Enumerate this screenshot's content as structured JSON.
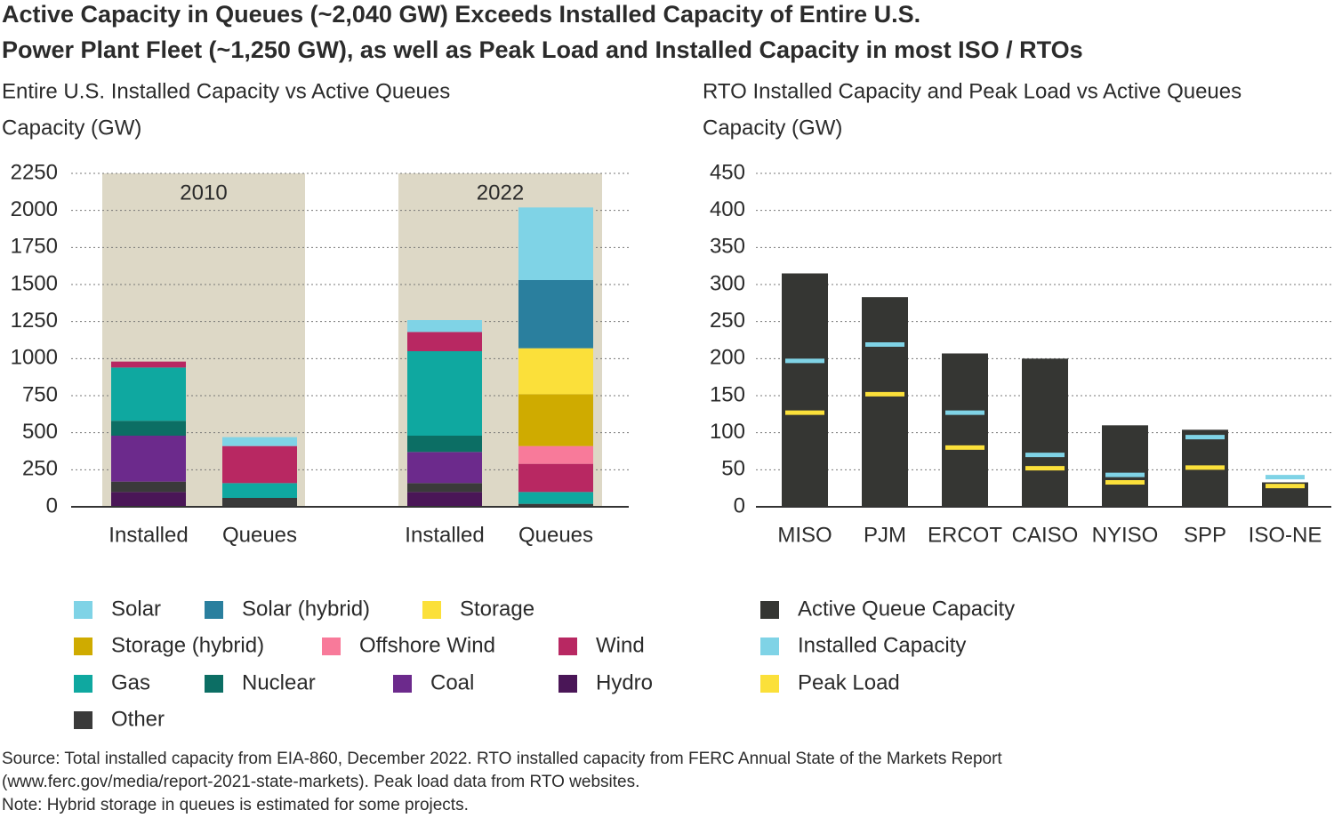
{
  "title": [
    "Active Capacity in Queues (~2,040 GW) Exceeds Installed Capacity of Entire U.S.",
    "Power Plant Fleet (~1,250 GW), as well as Peak Load and Installed Capacity in most ISO / RTOs"
  ],
  "notes": [
    "Source: Total installed capacity from EIA-860, December 2022. RTO installed capacity from FERC Annual State of the Markets Report",
    "(www.ferc.gov/media/report-2021-state-markets). Peak load data from RTO websites.",
    "Note: Hybrid storage in queues is estimated for some projects."
  ],
  "chart_data": [
    {
      "type": "stacked_bar",
      "title": "Entire U.S. Installed Capacity vs Active Queues",
      "ylabel": "Capacity (GW)",
      "groups": [
        "2010",
        "2022"
      ],
      "categories": [
        "Installed",
        "Queues",
        "Installed",
        "Queues"
      ],
      "ylim": [
        0,
        2250
      ],
      "yticks": [
        0,
        250,
        500,
        750,
        1000,
        1250,
        1500,
        1750,
        2000,
        2250
      ],
      "grid": true,
      "series": [
        {
          "name": "Hydro",
          "color": "#4a1657",
          "values": [
            100,
            0,
            100,
            0
          ]
        },
        {
          "name": "Other",
          "color": "#3a3a3a",
          "values": [
            70,
            60,
            60,
            20
          ]
        },
        {
          "name": "Coal",
          "color": "#6c2a8c",
          "values": [
            310,
            0,
            210,
            0
          ]
        },
        {
          "name": "Nuclear",
          "color": "#0c6e64",
          "values": [
            100,
            0,
            110,
            0
          ]
        },
        {
          "name": "Gas",
          "color": "#0fa8a0",
          "values": [
            360,
            100,
            570,
            80
          ]
        },
        {
          "name": "Wind",
          "color": "#b82862",
          "values": [
            40,
            250,
            130,
            190
          ]
        },
        {
          "name": "Offshore Wind",
          "color": "#f87a9a",
          "values": [
            0,
            0,
            0,
            120
          ]
        },
        {
          "name": "Storage (hybrid)",
          "color": "#cfab00",
          "values": [
            0,
            0,
            0,
            350
          ]
        },
        {
          "name": "Storage",
          "color": "#fbe03a",
          "values": [
            0,
            0,
            0,
            310
          ]
        },
        {
          "name": "Solar (hybrid)",
          "color": "#2a7f9e",
          "values": [
            0,
            0,
            0,
            460
          ]
        },
        {
          "name": "Solar",
          "color": "#7fd3e6",
          "values": [
            0,
            60,
            80,
            490
          ]
        }
      ]
    },
    {
      "type": "bar_with_markers",
      "title": "RTO Installed Capacity and Peak Load vs Active Queues",
      "ylabel": "Capacity (GW)",
      "categories": [
        "MISO",
        "PJM",
        "ERCOT",
        "CAISO",
        "NYISO",
        "SPP",
        "ISO-NE"
      ],
      "ylim": [
        0,
        450
      ],
      "yticks": [
        0,
        50,
        100,
        150,
        200,
        250,
        300,
        350,
        400,
        450
      ],
      "grid": true,
      "series": [
        {
          "name": "Active Queue Capacity",
          "color": "#353633",
          "style": "bar",
          "values": [
            315,
            283,
            207,
            200,
            110,
            104,
            33
          ]
        },
        {
          "name": "Installed Capacity",
          "color": "#7fd3e6",
          "style": "marker",
          "values": [
            197,
            219,
            127,
            70,
            43,
            94,
            40
          ]
        },
        {
          "name": "Peak Load",
          "color": "#fbe03a",
          "style": "marker",
          "values": [
            127,
            152,
            80,
            52,
            33,
            53,
            28
          ]
        }
      ]
    }
  ]
}
